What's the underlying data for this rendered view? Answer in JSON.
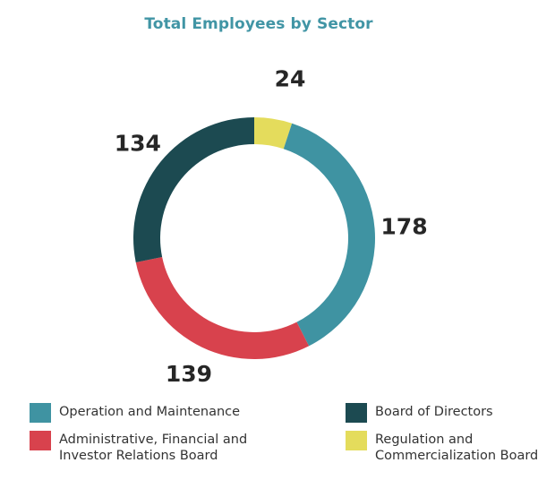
{
  "chart_data": {
    "type": "pie",
    "title": "Total Employees by Sector",
    "series": [
      {
        "name": "Operation and Maintenance",
        "value": 178,
        "color": "#3f93a2"
      },
      {
        "name": "Administrative, Financial and\nInvestor Relations Board",
        "value": 139,
        "color": "#d8424d"
      },
      {
        "name": "Board of Directors",
        "value": 134,
        "color": "#1c4a51"
      },
      {
        "name": "Regulation and\nCommercialization Board",
        "value": 24,
        "color": "#e4dc5c"
      }
    ],
    "legend_position": "bottom"
  }
}
